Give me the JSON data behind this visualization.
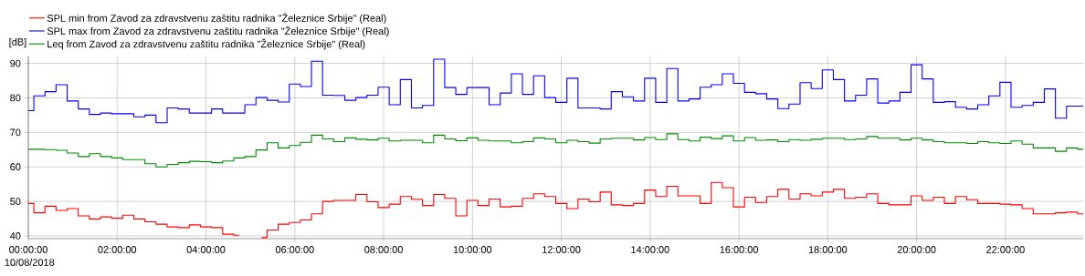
{
  "chart_data": {
    "type": "step",
    "ylabel": "[dB]",
    "annotations": [
      "10/08/2018"
    ],
    "x": [
      0,
      0.25,
      0.5,
      0.75,
      1,
      1.25,
      1.5,
      1.75,
      2,
      2.25,
      2.5,
      2.75,
      3,
      3.25,
      3.5,
      3.75,
      4,
      4.25,
      4.5,
      4.75,
      5,
      5.25,
      5.5,
      5.75,
      6,
      6.25,
      6.5,
      6.75,
      7,
      7.25,
      7.5,
      7.75,
      8,
      8.25,
      8.5,
      8.75,
      9,
      9.25,
      9.5,
      9.75,
      10,
      10.25,
      10.5,
      10.75,
      11,
      11.25,
      11.5,
      11.75,
      12,
      12.25,
      12.5,
      12.75,
      13,
      13.25,
      13.5,
      13.75,
      14,
      14.25,
      14.5,
      14.75,
      15,
      15.25,
      15.5,
      15.75,
      16,
      16.25,
      16.5,
      16.75,
      17,
      17.25,
      17.5,
      17.75,
      18,
      18.25,
      18.5,
      18.75,
      19,
      19.25,
      19.5,
      19.75,
      20,
      20.25,
      20.5,
      20.75,
      21,
      21.25,
      21.5,
      21.75,
      22,
      22.25,
      22.5,
      22.75,
      23,
      23.25,
      23.5,
      23.75
    ],
    "series": [
      {
        "name": "SPL min from Zavod za zdravstvenu zaštitu radnika \"Železnice Srbije\" (Real)",
        "color": "#ff0000",
        "values": [
          49.4,
          46.7,
          48.6,
          47.4,
          47.9,
          45.8,
          44.9,
          45.5,
          45.1,
          46.0,
          44.9,
          44.1,
          43.4,
          42.6,
          42.4,
          43.2,
          42.6,
          42.4,
          40.5,
          40.2,
          null,
          39.5,
          41.7,
          43.4,
          43.9,
          44.6,
          46.4,
          50.0,
          50.3,
          50.3,
          52.0,
          49.9,
          48.2,
          49.2,
          51.4,
          50.6,
          48.8,
          52.0,
          50.9,
          45.8,
          50.3,
          48.8,
          50.7,
          48.4,
          48.6,
          50.9,
          52.2,
          51.4,
          49.4,
          47.9,
          50.7,
          49.9,
          52.7,
          49.0,
          48.8,
          49.4,
          53.3,
          51.4,
          54.4,
          51.6,
          51.6,
          49.4,
          55.5,
          54.0,
          48.4,
          51.2,
          49.7,
          51.4,
          53.5,
          50.7,
          52.2,
          51.6,
          52.7,
          53.5,
          50.9,
          51.2,
          52.2,
          49.4,
          49.0,
          49.0,
          51.6,
          50.3,
          51.2,
          49.4,
          51.4,
          50.5,
          49.4,
          49.4,
          49.2,
          49.0,
          47.9,
          46.4,
          46.4,
          46.7,
          46.9,
          46.4
        ]
      },
      {
        "name": "SPL max from Zavod za zdravstvenu zaštitu radnika \"Železnice Srbije\" (Real)",
        "color": "#0000ff",
        "values": [
          76.3,
          80.6,
          81.8,
          83.8,
          79.1,
          76.8,
          75.2,
          75.6,
          75.4,
          75.4,
          74.5,
          75.0,
          72.8,
          77.1,
          76.8,
          75.6,
          75.6,
          76.8,
          75.6,
          75.6,
          78.0,
          80.1,
          79.3,
          78.8,
          84.0,
          83.3,
          90.6,
          80.8,
          80.7,
          79.3,
          80.1,
          80.8,
          83.1,
          78.0,
          85.3,
          77.1,
          77.8,
          91.2,
          83.0,
          81.0,
          83.0,
          83.0,
          78.0,
          81.4,
          87.0,
          81.0,
          86.4,
          80.1,
          78.7,
          85.7,
          77.1,
          77.1,
          76.8,
          81.8,
          80.3,
          79.1,
          85.7,
          78.7,
          88.5,
          79.1,
          79.7,
          83.1,
          83.8,
          87.0,
          84.2,
          81.6,
          81.2,
          79.7,
          76.9,
          78.2,
          84.4,
          82.7,
          88.1,
          85.3,
          79.1,
          80.8,
          85.5,
          78.5,
          79.1,
          81.6,
          89.6,
          85.5,
          78.7,
          78.9,
          77.3,
          76.8,
          78.0,
          80.6,
          84.5,
          77.3,
          77.8,
          78.7,
          82.6,
          74.1,
          77.6,
          77.6
        ]
      },
      {
        "name": "Leq from Zavod za zdravstvenu zaštitu radnika \"Železnice Srbije\" (Real)",
        "color": "#008c00",
        "values": [
          65.1,
          65.1,
          65.0,
          64.8,
          64.0,
          63.0,
          63.8,
          63.0,
          62.6,
          62.1,
          62.1,
          60.9,
          60.0,
          60.7,
          61.2,
          61.6,
          61.5,
          61.2,
          61.7,
          62.6,
          63.0,
          64.9,
          67.0,
          65.5,
          66.2,
          67.1,
          69.2,
          68.1,
          67.3,
          68.4,
          68.0,
          67.8,
          68.3,
          67.5,
          67.7,
          67.7,
          67.0,
          69.2,
          68.1,
          67.6,
          68.4,
          67.7,
          67.5,
          67.5,
          67.0,
          67.3,
          68.4,
          68.1,
          67.0,
          67.7,
          67.3,
          66.9,
          68.1,
          68.3,
          68.3,
          67.8,
          68.5,
          67.9,
          69.6,
          67.9,
          67.5,
          68.6,
          68.2,
          69.0,
          67.5,
          68.5,
          67.7,
          67.8,
          67.3,
          67.9,
          67.7,
          68.0,
          68.3,
          68.3,
          67.9,
          68.1,
          68.8,
          68.3,
          68.3,
          67.8,
          68.3,
          67.8,
          67.3,
          67.0,
          67.0,
          66.8,
          67.3,
          67.0,
          66.8,
          67.5,
          66.6,
          65.5,
          65.5,
          64.5,
          65.5,
          65.1
        ]
      }
    ],
    "xlim": [
      0,
      23.75
    ],
    "ylim": [
      39.2,
      92
    ],
    "xticks": [
      {
        "value": 0,
        "label": "00:00:00"
      },
      {
        "value": 2,
        "label": "02:00:00"
      },
      {
        "value": 4,
        "label": "04:00:00"
      },
      {
        "value": 6,
        "label": "06:00:00"
      },
      {
        "value": 8,
        "label": "08:00:00"
      },
      {
        "value": 10,
        "label": "10:00:00"
      },
      {
        "value": 12,
        "label": "12:00:00"
      },
      {
        "value": 14,
        "label": "14:00:00"
      },
      {
        "value": 16,
        "label": "16:00:00"
      },
      {
        "value": 18,
        "label": "18:00:00"
      },
      {
        "value": 20,
        "label": "20:00:00"
      },
      {
        "value": 22,
        "label": "22:00:00"
      }
    ],
    "yticks": [
      40,
      50,
      60,
      70,
      80,
      90
    ],
    "grid": true,
    "legend": "top left",
    "line_style": "solid",
    "marker": "none"
  }
}
